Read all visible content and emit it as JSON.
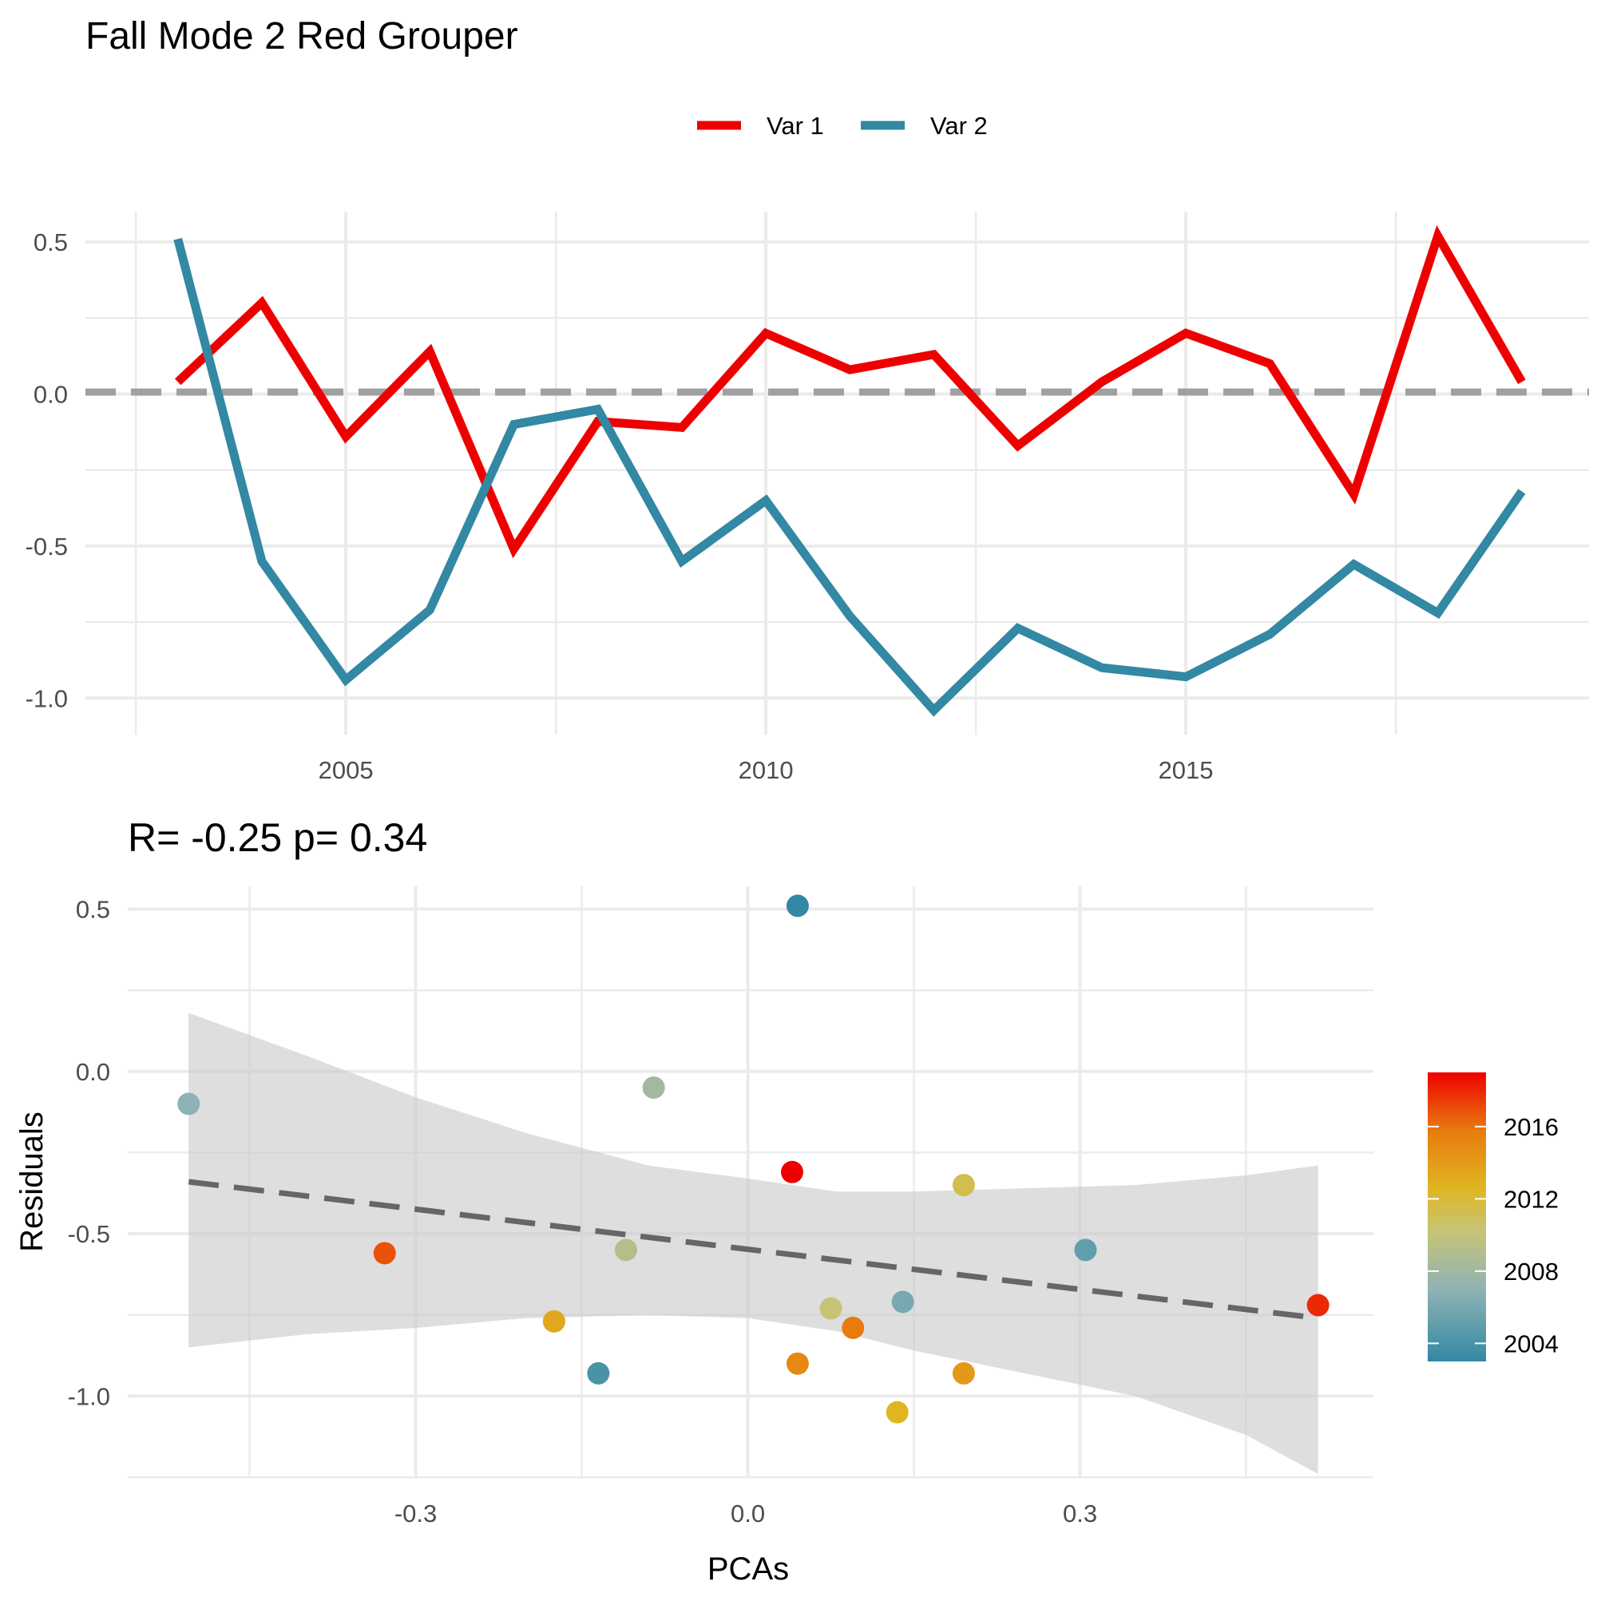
{
  "title": "Fall Mode 2 Red Grouper",
  "chart_data": [
    {
      "type": "line",
      "legend": {
        "position": "top",
        "entries": [
          "Var 1",
          "Var 2"
        ]
      },
      "x": [
        2003,
        2004,
        2005,
        2006,
        2007,
        2008,
        2009,
        2010,
        2011,
        2012,
        2013,
        2014,
        2015,
        2016,
        2017,
        2018,
        2019
      ],
      "series": [
        {
          "name": "Var 1",
          "color": "#EE0000",
          "values": [
            0.04,
            0.3,
            -0.14,
            0.14,
            -0.51,
            -0.09,
            -0.11,
            0.2,
            0.08,
            0.13,
            -0.17,
            0.04,
            0.2,
            0.1,
            -0.33,
            0.52,
            0.04
          ]
        },
        {
          "name": "Var 2",
          "color": "#3388A3",
          "values": [
            0.51,
            -0.55,
            -0.94,
            -0.71,
            -0.1,
            -0.05,
            -0.55,
            -0.35,
            -0.73,
            -1.04,
            -0.77,
            -0.9,
            -0.93,
            -0.79,
            -0.56,
            -0.72,
            -0.32
          ]
        }
      ],
      "reference_line": 0.0,
      "x_ticks": [
        "2005",
        "2010",
        "2015"
      ],
      "y_ticks": [
        "0.5",
        "0.0",
        "-0.5",
        "-1.0"
      ],
      "xlim": [
        2001.9,
        2019.8
      ],
      "ylim": [
        -1.12,
        0.6
      ],
      "grid": true
    },
    {
      "type": "scatter",
      "title": "R= -0.25  p= 0.34",
      "xlabel": "PCAs",
      "ylabel": "Residuals",
      "x_ticks": [
        "-0.3",
        "0.0",
        "0.3"
      ],
      "y_ticks": [
        "0.5",
        "0.0",
        "-0.5",
        "-1.0"
      ],
      "xlim": [
        -0.56,
        0.565
      ],
      "ylim": [
        -1.25,
        0.57
      ],
      "points": [
        {
          "x": -0.505,
          "y": -0.1,
          "year": 2007
        },
        {
          "x": -0.328,
          "y": -0.56,
          "year": 2017
        },
        {
          "x": -0.175,
          "y": -0.77,
          "year": 2013
        },
        {
          "x": -0.135,
          "y": -0.93,
          "year": 2004
        },
        {
          "x": -0.11,
          "y": -0.55,
          "year": 2009
        },
        {
          "x": -0.085,
          "y": -0.05,
          "year": 2008
        },
        {
          "x": 0.04,
          "y": -0.31,
          "year": 2019
        },
        {
          "x": 0.045,
          "y": 0.51,
          "year": 2003
        },
        {
          "x": 0.045,
          "y": -0.9,
          "year": 2015
        },
        {
          "x": 0.075,
          "y": -0.73,
          "year": 2010
        },
        {
          "x": 0.095,
          "y": -0.79,
          "year": 2016
        },
        {
          "x": 0.135,
          "y": -1.05,
          "year": 2012
        },
        {
          "x": 0.14,
          "y": -0.71,
          "year": 2006
        },
        {
          "x": 0.195,
          "y": -0.35,
          "year": 2011
        },
        {
          "x": 0.195,
          "y": -0.93,
          "year": 2014
        },
        {
          "x": 0.305,
          "y": -0.55,
          "year": 2005
        },
        {
          "x": 0.515,
          "y": -0.72,
          "year": 2018
        }
      ],
      "fit_line": {
        "x": [
          -0.505,
          0.515
        ],
        "y": [
          -0.34,
          -0.76
        ]
      },
      "confidence_band": {
        "x": [
          -0.505,
          -0.4,
          -0.3,
          -0.2,
          -0.09,
          0.0,
          0.08,
          0.15,
          0.25,
          0.35,
          0.45,
          0.515
        ],
        "upper": [
          0.18,
          0.05,
          -0.08,
          -0.19,
          -0.29,
          -0.33,
          -0.37,
          -0.37,
          -0.36,
          -0.35,
          -0.32,
          -0.29
        ],
        "lower": [
          -0.85,
          -0.81,
          -0.79,
          -0.76,
          -0.75,
          -0.76,
          -0.8,
          -0.86,
          -0.93,
          -1.0,
          -1.12,
          -1.24
        ]
      },
      "colorbar": {
        "ticks": [
          "2016",
          "2012",
          "2008",
          "2004"
        ],
        "range": [
          2003,
          2019
        ]
      }
    }
  ]
}
